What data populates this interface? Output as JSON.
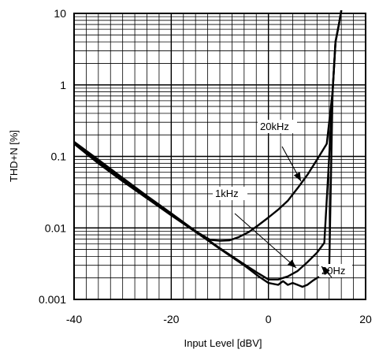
{
  "chart_data": {
    "type": "line",
    "xlabel": "Input Level [dBV]",
    "ylabel": "THD+N [%]",
    "xlim": [
      -40,
      20
    ],
    "ylim": [
      0.001,
      10
    ],
    "yscale": "log",
    "grid": true,
    "x_ticks": [
      "-40",
      "-20",
      "0",
      "20"
    ],
    "x_tick_values": [
      -40,
      -20,
      0,
      20
    ],
    "y_ticks": [
      "0.001",
      "0.01",
      "0.1",
      "1",
      "10"
    ],
    "y_tick_values": [
      0.001,
      0.01,
      0.1,
      1,
      10
    ],
    "series": [
      {
        "name": "20kHz",
        "x": [
          -40,
          -35,
          -30,
          -25,
          -20,
          -15,
          -12,
          -10,
          -8,
          -6,
          -4,
          -2,
          0,
          2,
          4,
          6,
          8,
          10,
          12,
          13.2,
          13.8,
          14.5,
          15
        ],
        "y": [
          0.16,
          0.09,
          0.05,
          0.028,
          0.016,
          0.009,
          0.0068,
          0.0066,
          0.0067,
          0.0075,
          0.0088,
          0.011,
          0.014,
          0.018,
          0.024,
          0.036,
          0.055,
          0.09,
          0.15,
          0.8,
          4,
          7,
          11
        ]
      },
      {
        "name": "1kHz",
        "x": [
          -40,
          -35,
          -30,
          -25,
          -20,
          -15,
          -10,
          -5,
          -2,
          0,
          2,
          4,
          6,
          8,
          10,
          11.5,
          12.5,
          13.2,
          13.8,
          14.5,
          15
        ],
        "y": [
          0.155,
          0.085,
          0.047,
          0.027,
          0.0155,
          0.009,
          0.0052,
          0.0031,
          0.0023,
          0.0019,
          0.0019,
          0.0021,
          0.0025,
          0.0033,
          0.0045,
          0.0062,
          0.1,
          0.8,
          4,
          7,
          11
        ]
      },
      {
        "name": "20Hz",
        "x": [
          -40,
          -35,
          -30,
          -25,
          -20,
          -15,
          -10,
          -5,
          -2,
          0,
          2,
          3,
          4,
          5,
          6,
          7,
          8,
          9,
          10,
          11.5,
          12.5,
          13.2,
          13.8,
          14.5,
          15
        ],
        "y": [
          0.15,
          0.08,
          0.045,
          0.026,
          0.015,
          0.0088,
          0.0051,
          0.003,
          0.0021,
          0.0017,
          0.0016,
          0.0018,
          0.0016,
          0.0017,
          0.0016,
          0.0015,
          0.0016,
          0.0018,
          0.002,
          0.0022,
          0.0026,
          0.8,
          4,
          7,
          11
        ]
      }
    ],
    "annotations": [
      {
        "text": "20kHz",
        "series": "20kHz"
      },
      {
        "text": "1kHz",
        "series": "1kHz"
      },
      {
        "text": "20Hz",
        "series": "20Hz"
      }
    ]
  }
}
